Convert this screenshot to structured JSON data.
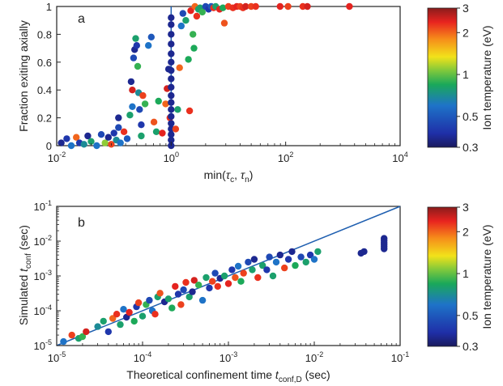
{
  "chart_data": [
    {
      "panel": "a",
      "type": "scatter",
      "panel_label": "a",
      "xlabel": "min(τc, τn)",
      "ylabel": "Fraction exiting axially",
      "xscale": "log",
      "xlim": [
        0.01,
        10000
      ],
      "ylim": [
        0,
        1
      ],
      "x_ticks": [
        "10-2",
        "100",
        "102",
        "104"
      ],
      "y_ticks": [
        "0",
        "0.2",
        "0.4",
        "0.6",
        "0.8",
        "1"
      ],
      "grid": false,
      "vertical_line_x": 1,
      "colorbar": {
        "title": "Ion temperature (eV)",
        "scale": "log",
        "range": [
          0.3,
          3
        ],
        "ticks": [
          "3",
          "2",
          "1",
          "0.5",
          "0.3"
        ]
      },
      "points": [
        {
          "x": 0.012,
          "y": 0.02,
          "T": 0.35
        },
        {
          "x": 0.015,
          "y": 0.05,
          "T": 0.4
        },
        {
          "x": 0.018,
          "y": 0.0,
          "T": 0.6
        },
        {
          "x": 0.022,
          "y": 0.06,
          "T": 2.0
        },
        {
          "x": 0.025,
          "y": 0.02,
          "T": 0.4
        },
        {
          "x": 0.03,
          "y": 0.01,
          "T": 0.7
        },
        {
          "x": 0.035,
          "y": 0.07,
          "T": 0.35
        },
        {
          "x": 0.04,
          "y": 0.03,
          "T": 0.8
        },
        {
          "x": 0.05,
          "y": 0.0,
          "T": 0.6
        },
        {
          "x": 0.06,
          "y": 0.08,
          "T": 0.45
        },
        {
          "x": 0.07,
          "y": 0.02,
          "T": 1.1
        },
        {
          "x": 0.08,
          "y": 0.06,
          "T": 0.35
        },
        {
          "x": 0.09,
          "y": 0.01,
          "T": 2.2
        },
        {
          "x": 0.1,
          "y": 0.09,
          "T": 0.4
        },
        {
          "x": 0.11,
          "y": 0.04,
          "T": 0.7
        },
        {
          "x": 0.12,
          "y": 0.13,
          "T": 0.45
        },
        {
          "x": 0.12,
          "y": 0.2,
          "T": 0.35
        },
        {
          "x": 0.13,
          "y": 0.02,
          "T": 0.6
        },
        {
          "x": 0.15,
          "y": 0.1,
          "T": 2.3
        },
        {
          "x": 0.17,
          "y": 0.05,
          "T": 0.5
        },
        {
          "x": 0.19,
          "y": 0.22,
          "T": 0.8
        },
        {
          "x": 0.2,
          "y": 0.46,
          "T": 0.35
        },
        {
          "x": 0.21,
          "y": 0.28,
          "T": 0.6
        },
        {
          "x": 0.22,
          "y": 0.63,
          "T": 0.45
        },
        {
          "x": 0.23,
          "y": 0.69,
          "T": 0.35
        },
        {
          "x": 0.24,
          "y": 0.77,
          "T": 0.8
        },
        {
          "x": 0.25,
          "y": 0.72,
          "T": 0.4
        },
        {
          "x": 0.26,
          "y": 0.57,
          "T": 0.9
        },
        {
          "x": 0.27,
          "y": 0.38,
          "T": 0.7
        },
        {
          "x": 0.28,
          "y": 0.26,
          "T": 0.45
        },
        {
          "x": 0.21,
          "y": 0.4,
          "T": 2.5
        },
        {
          "x": 0.3,
          "y": 0.15,
          "T": 0.4
        },
        {
          "x": 0.3,
          "y": 0.07,
          "T": 0.8
        },
        {
          "x": 0.32,
          "y": 0.36,
          "T": 2.2
        },
        {
          "x": 0.35,
          "y": 0.3,
          "T": 0.9
        },
        {
          "x": 0.4,
          "y": 0.72,
          "T": 0.6
        },
        {
          "x": 0.45,
          "y": 0.78,
          "T": 0.5
        },
        {
          "x": 0.5,
          "y": 0.17,
          "T": 2.1
        },
        {
          "x": 0.55,
          "y": 0.1,
          "T": 0.8
        },
        {
          "x": 0.6,
          "y": 0.32,
          "T": 0.85
        },
        {
          "x": 0.7,
          "y": 0.09,
          "T": 2.4
        },
        {
          "x": 0.8,
          "y": 0.3,
          "T": 2.0
        },
        {
          "x": 0.85,
          "y": 0.41,
          "T": 2.5
        },
        {
          "x": 0.9,
          "y": 0.55,
          "T": 0.35
        },
        {
          "x": 0.95,
          "y": 0.2,
          "T": 2.3
        },
        {
          "x": 1.0,
          "y": 0.0,
          "T": 0.35
        },
        {
          "x": 1.0,
          "y": 0.04,
          "T": 0.35
        },
        {
          "x": 1.0,
          "y": 0.08,
          "T": 0.35
        },
        {
          "x": 1.0,
          "y": 0.12,
          "T": 0.35
        },
        {
          "x": 1.0,
          "y": 0.16,
          "T": 0.35
        },
        {
          "x": 1.0,
          "y": 0.21,
          "T": 0.35
        },
        {
          "x": 1.0,
          "y": 0.26,
          "T": 0.35
        },
        {
          "x": 1.0,
          "y": 0.31,
          "T": 0.35
        },
        {
          "x": 1.0,
          "y": 0.36,
          "T": 0.35
        },
        {
          "x": 1.0,
          "y": 0.42,
          "T": 0.35
        },
        {
          "x": 1.0,
          "y": 0.48,
          "T": 0.35
        },
        {
          "x": 1.0,
          "y": 0.54,
          "T": 0.35
        },
        {
          "x": 1.0,
          "y": 0.6,
          "T": 0.35
        },
        {
          "x": 1.0,
          "y": 0.66,
          "T": 0.35
        },
        {
          "x": 1.0,
          "y": 0.73,
          "T": 0.35
        },
        {
          "x": 1.0,
          "y": 0.8,
          "T": 0.35
        },
        {
          "x": 1.0,
          "y": 0.87,
          "T": 0.35
        },
        {
          "x": 1.0,
          "y": 0.92,
          "T": 0.35
        },
        {
          "x": 1.2,
          "y": 0.12,
          "T": 2.2
        },
        {
          "x": 1.3,
          "y": 0.26,
          "T": 0.8
        },
        {
          "x": 1.4,
          "y": 0.56,
          "T": 2.0
        },
        {
          "x": 1.5,
          "y": 0.86,
          "T": 0.6
        },
        {
          "x": 1.6,
          "y": 0.95,
          "T": 0.45
        },
        {
          "x": 1.8,
          "y": 0.9,
          "T": 0.8
        },
        {
          "x": 2.0,
          "y": 0.62,
          "T": 0.85
        },
        {
          "x": 2.1,
          "y": 0.25,
          "T": 2.3
        },
        {
          "x": 2.2,
          "y": 0.97,
          "T": 2.4
        },
        {
          "x": 2.4,
          "y": 0.8,
          "T": 0.9
        },
        {
          "x": 2.5,
          "y": 0.7,
          "T": 0.85
        },
        {
          "x": 2.6,
          "y": 1.0,
          "T": 2.0
        },
        {
          "x": 2.8,
          "y": 0.93,
          "T": 2.3
        },
        {
          "x": 3.0,
          "y": 0.98,
          "T": 0.8
        },
        {
          "x": 3.2,
          "y": 0.99,
          "T": 0.8
        },
        {
          "x": 3.5,
          "y": 0.96,
          "T": 0.9
        },
        {
          "x": 4.0,
          "y": 1.0,
          "T": 0.45
        },
        {
          "x": 4.5,
          "y": 0.98,
          "T": 0.4
        },
        {
          "x": 5.0,
          "y": 1.0,
          "T": 0.5
        },
        {
          "x": 5.5,
          "y": 0.99,
          "T": 2.3
        },
        {
          "x": 6.0,
          "y": 1.0,
          "T": 0.8
        },
        {
          "x": 7.0,
          "y": 0.98,
          "T": 2.4
        },
        {
          "x": 8.0,
          "y": 0.99,
          "T": 0.85
        },
        {
          "x": 8.5,
          "y": 0.88,
          "T": 2.1
        },
        {
          "x": 10,
          "y": 1.0,
          "T": 2.2
        },
        {
          "x": 12,
          "y": 0.99,
          "T": 2.3
        },
        {
          "x": 14,
          "y": 1.0,
          "T": 2.4
        },
        {
          "x": 16,
          "y": 1.0,
          "T": 2.2
        },
        {
          "x": 18,
          "y": 0.99,
          "T": 2.3
        },
        {
          "x": 20,
          "y": 1.0,
          "T": 2.5
        },
        {
          "x": 25,
          "y": 1.0,
          "T": 2.2
        },
        {
          "x": 30,
          "y": 1.0,
          "T": 2.3
        },
        {
          "x": 80,
          "y": 1.0,
          "T": 2.4
        },
        {
          "x": 110,
          "y": 1.0,
          "T": 2.2
        },
        {
          "x": 200,
          "y": 1.0,
          "T": 2.3
        },
        {
          "x": 240,
          "y": 1.0,
          "T": 2.5
        },
        {
          "x": 1300,
          "y": 1.0,
          "T": 2.4
        }
      ]
    },
    {
      "panel": "b",
      "type": "scatter",
      "panel_label": "b",
      "xlabel": "Theoretical confinement time tconf,D (sec)",
      "ylabel": "Simulated tconf (sec)",
      "xscale": "log",
      "yscale": "log",
      "xlim": [
        1e-05,
        0.1
      ],
      "ylim": [
        1e-05,
        0.1
      ],
      "x_ticks": [
        "10-5",
        "10-4",
        "10-3",
        "10-2",
        "10-1"
      ],
      "y_ticks": [
        "10-5",
        "10-4",
        "10-3",
        "10-2",
        "10-1"
      ],
      "grid": false,
      "reference_line": "y = x",
      "colorbar": {
        "title": "Ion temperature (eV)",
        "scale": "log",
        "range": [
          0.3,
          3
        ],
        "ticks": [
          "3",
          "2",
          "1",
          "0.5",
          "0.3"
        ]
      },
      "points": [
        {
          "x": 1.2e-05,
          "y": 1.3e-05,
          "T": 0.6
        },
        {
          "x": 1.5e-05,
          "y": 2e-05,
          "T": 2.2
        },
        {
          "x": 1.8e-05,
          "y": 1.6e-05,
          "T": 0.8
        },
        {
          "x": 2e-05,
          "y": 1.8e-05,
          "T": 0.9
        },
        {
          "x": 2.2e-05,
          "y": 2.5e-05,
          "T": 2.5
        },
        {
          "x": 3e-05,
          "y": 3.5e-05,
          "T": 0.7
        },
        {
          "x": 3.5e-05,
          "y": 5e-05,
          "T": 0.8
        },
        {
          "x": 4e-05,
          "y": 2.5e-05,
          "T": 0.4
        },
        {
          "x": 4.5e-05,
          "y": 6e-05,
          "T": 2.0
        },
        {
          "x": 5e-05,
          "y": 8e-05,
          "T": 2.3
        },
        {
          "x": 5.5e-05,
          "y": 4e-05,
          "T": 0.8
        },
        {
          "x": 6e-05,
          "y": 0.00011,
          "T": 0.6
        },
        {
          "x": 6.5e-05,
          "y": 6.5e-05,
          "T": 0.35
        },
        {
          "x": 7e-05,
          "y": 9e-05,
          "T": 2.4
        },
        {
          "x": 8e-05,
          "y": 5e-05,
          "T": 0.85
        },
        {
          "x": 8.5e-05,
          "y": 0.00013,
          "T": 0.4
        },
        {
          "x": 9e-05,
          "y": 0.00017,
          "T": 2.2
        },
        {
          "x": 0.0001,
          "y": 7e-05,
          "T": 0.8
        },
        {
          "x": 0.00011,
          "y": 0.00015,
          "T": 0.9
        },
        {
          "x": 0.00012,
          "y": 0.0002,
          "T": 0.45
        },
        {
          "x": 0.00013,
          "y": 0.0001,
          "T": 0.6
        },
        {
          "x": 0.00014,
          "y": 8e-05,
          "T": 2.3
        },
        {
          "x": 0.00015,
          "y": 0.00025,
          "T": 0.8
        },
        {
          "x": 0.00016,
          "y": 0.00032,
          "T": 2.1
        },
        {
          "x": 0.00018,
          "y": 0.00018,
          "T": 0.35
        },
        {
          "x": 0.0002,
          "y": 0.00022,
          "T": 0.8
        },
        {
          "x": 0.00022,
          "y": 0.00012,
          "T": 0.85
        },
        {
          "x": 0.00024,
          "y": 0.0005,
          "T": 2.4
        },
        {
          "x": 0.00026,
          "y": 0.0003,
          "T": 0.4
        },
        {
          "x": 0.00028,
          "y": 0.00015,
          "T": 2.2
        },
        {
          "x": 0.0003,
          "y": 0.0004,
          "T": 0.45
        },
        {
          "x": 0.00032,
          "y": 0.00065,
          "T": 2.3
        },
        {
          "x": 0.00035,
          "y": 0.00025,
          "T": 0.8
        },
        {
          "x": 0.00038,
          "y": 0.00035,
          "T": 0.35
        },
        {
          "x": 0.0004,
          "y": 0.00075,
          "T": 2.5
        },
        {
          "x": 0.00045,
          "y": 0.00055,
          "T": 0.9
        },
        {
          "x": 0.0005,
          "y": 0.0002,
          "T": 0.6
        },
        {
          "x": 0.00055,
          "y": 0.0009,
          "T": 0.8
        },
        {
          "x": 0.0006,
          "y": 0.00045,
          "T": 0.4
        },
        {
          "x": 0.00065,
          "y": 0.0007,
          "T": 2.2
        },
        {
          "x": 0.0007,
          "y": 0.0012,
          "T": 0.45
        },
        {
          "x": 0.00075,
          "y": 0.0005,
          "T": 2.3
        },
        {
          "x": 0.0008,
          "y": 0.00085,
          "T": 0.35
        },
        {
          "x": 0.0009,
          "y": 0.001,
          "T": 0.8
        },
        {
          "x": 0.001,
          "y": 0.0006,
          "T": 2.4
        },
        {
          "x": 0.0011,
          "y": 0.0015,
          "T": 0.4
        },
        {
          "x": 0.0012,
          "y": 0.0009,
          "T": 2.1
        },
        {
          "x": 0.0013,
          "y": 0.0019,
          "T": 0.6
        },
        {
          "x": 0.0014,
          "y": 0.0007,
          "T": 0.85
        },
        {
          "x": 0.0015,
          "y": 0.0012,
          "T": 2.2
        },
        {
          "x": 0.0017,
          "y": 0.0025,
          "T": 0.45
        },
        {
          "x": 0.0019,
          "y": 0.0015,
          "T": 0.8
        },
        {
          "x": 0.002,
          "y": 0.003,
          "T": 0.35
        },
        {
          "x": 0.0022,
          "y": 0.0009,
          "T": 2.3
        },
        {
          "x": 0.0025,
          "y": 0.002,
          "T": 0.8
        },
        {
          "x": 0.0028,
          "y": 0.0015,
          "T": 0.4
        },
        {
          "x": 0.003,
          "y": 0.0035,
          "T": 0.45
        },
        {
          "x": 0.0033,
          "y": 0.001,
          "T": 0.8
        },
        {
          "x": 0.0036,
          "y": 0.0025,
          "T": 0.6
        },
        {
          "x": 0.004,
          "y": 0.004,
          "T": 0.35
        },
        {
          "x": 0.0045,
          "y": 0.0017,
          "T": 2.2
        },
        {
          "x": 0.005,
          "y": 0.003,
          "T": 0.4
        },
        {
          "x": 0.0055,
          "y": 0.005,
          "T": 0.35
        },
        {
          "x": 0.006,
          "y": 0.002,
          "T": 0.85
        },
        {
          "x": 0.007,
          "y": 0.0035,
          "T": 0.45
        },
        {
          "x": 0.008,
          "y": 0.0025,
          "T": 0.8
        },
        {
          "x": 0.009,
          "y": 0.004,
          "T": 0.4
        },
        {
          "x": 0.01,
          "y": 0.003,
          "T": 0.6
        },
        {
          "x": 0.011,
          "y": 0.005,
          "T": 0.8
        },
        {
          "x": 0.035,
          "y": 0.0045,
          "T": 0.35
        },
        {
          "x": 0.038,
          "y": 0.005,
          "T": 0.35
        },
        {
          "x": 0.065,
          "y": 0.006,
          "T": 0.35
        },
        {
          "x": 0.065,
          "y": 0.007,
          "T": 0.35
        },
        {
          "x": 0.065,
          "y": 0.008,
          "T": 0.35
        },
        {
          "x": 0.065,
          "y": 0.009,
          "T": 0.35
        },
        {
          "x": 0.065,
          "y": 0.0105,
          "T": 0.35
        },
        {
          "x": 0.065,
          "y": 0.012,
          "T": 0.35
        }
      ]
    }
  ]
}
